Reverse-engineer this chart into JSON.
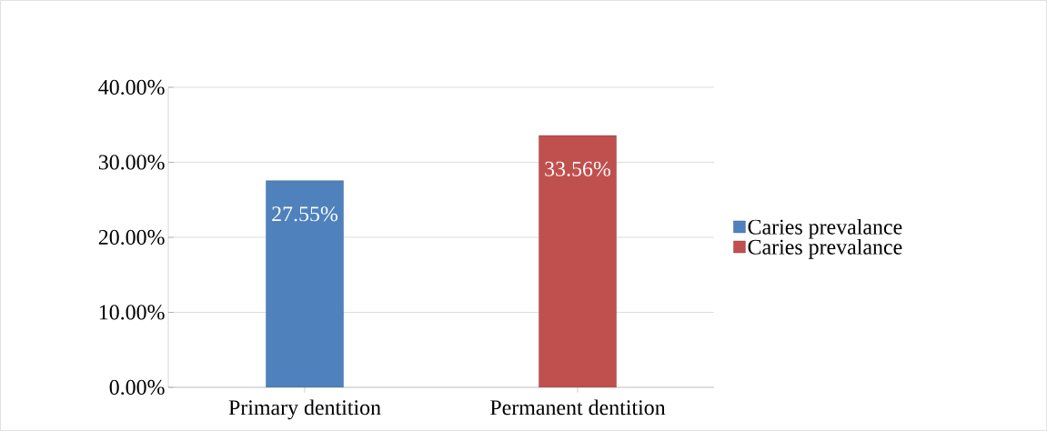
{
  "chart_data": {
    "type": "bar",
    "categories": [
      "Primary dentition",
      "Permanent dentition"
    ],
    "series": [
      {
        "name": "Caries prevalance",
        "color": "#4f81bd",
        "values": [
          27.55,
          null
        ],
        "value_labels": [
          "27.55%",
          null
        ]
      },
      {
        "name": "Caries prevalance",
        "color": "#c0504d",
        "values": [
          null,
          33.56
        ],
        "value_labels": [
          null,
          "33.56%"
        ]
      }
    ],
    "ylim": [
      0,
      40
    ],
    "yticks": [
      {
        "value": 0,
        "label": "0.00%"
      },
      {
        "value": 10,
        "label": "10.00%"
      },
      {
        "value": 20,
        "label": "20.00%"
      },
      {
        "value": 30,
        "label": "30.00%"
      },
      {
        "value": 40,
        "label": "40.00%"
      }
    ],
    "grid": "y",
    "legend": "right"
  }
}
